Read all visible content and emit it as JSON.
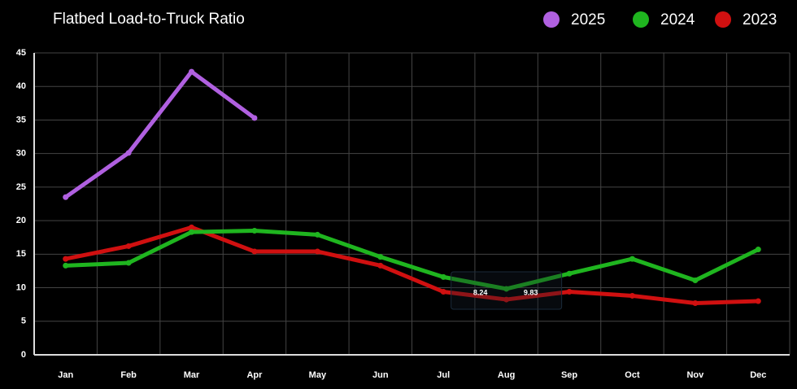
{
  "chart_data": {
    "type": "line",
    "title": "Flatbed Load-to-Truck Ratio",
    "categories": [
      "Jan",
      "Feb",
      "Mar",
      "Apr",
      "May",
      "Jun",
      "Jul",
      "Aug",
      "Sep",
      "Oct",
      "Nov",
      "Dec"
    ],
    "series": [
      {
        "name": "2025",
        "color": "#b060e0",
        "values": [
          23.5,
          30.1,
          42.2,
          35.3,
          null,
          null,
          null,
          null,
          null,
          null,
          null,
          null
        ]
      },
      {
        "name": "2024",
        "color": "#1fb51f",
        "values": [
          13.3,
          13.7,
          18.3,
          18.5,
          17.9,
          14.6,
          11.6,
          9.83,
          12.1,
          14.3,
          11.1,
          15.7
        ],
        "value_labels": [
          null,
          null,
          null,
          null,
          null,
          null,
          null,
          "9.83",
          null,
          null,
          null,
          null
        ]
      },
      {
        "name": "2023",
        "color": "#d01010",
        "values": [
          14.3,
          16.2,
          19.0,
          15.4,
          15.4,
          13.3,
          9.4,
          8.24,
          9.4,
          8.8,
          7.7,
          8.0
        ],
        "value_labels": [
          null,
          null,
          null,
          null,
          null,
          null,
          null,
          "8.24",
          null,
          null,
          null,
          null
        ]
      }
    ],
    "ylim": [
      0,
      45
    ],
    "yticks": [
      0,
      5,
      10,
      15,
      20,
      25,
      30,
      35,
      40,
      45
    ],
    "grid": true,
    "legend": "top-right"
  }
}
